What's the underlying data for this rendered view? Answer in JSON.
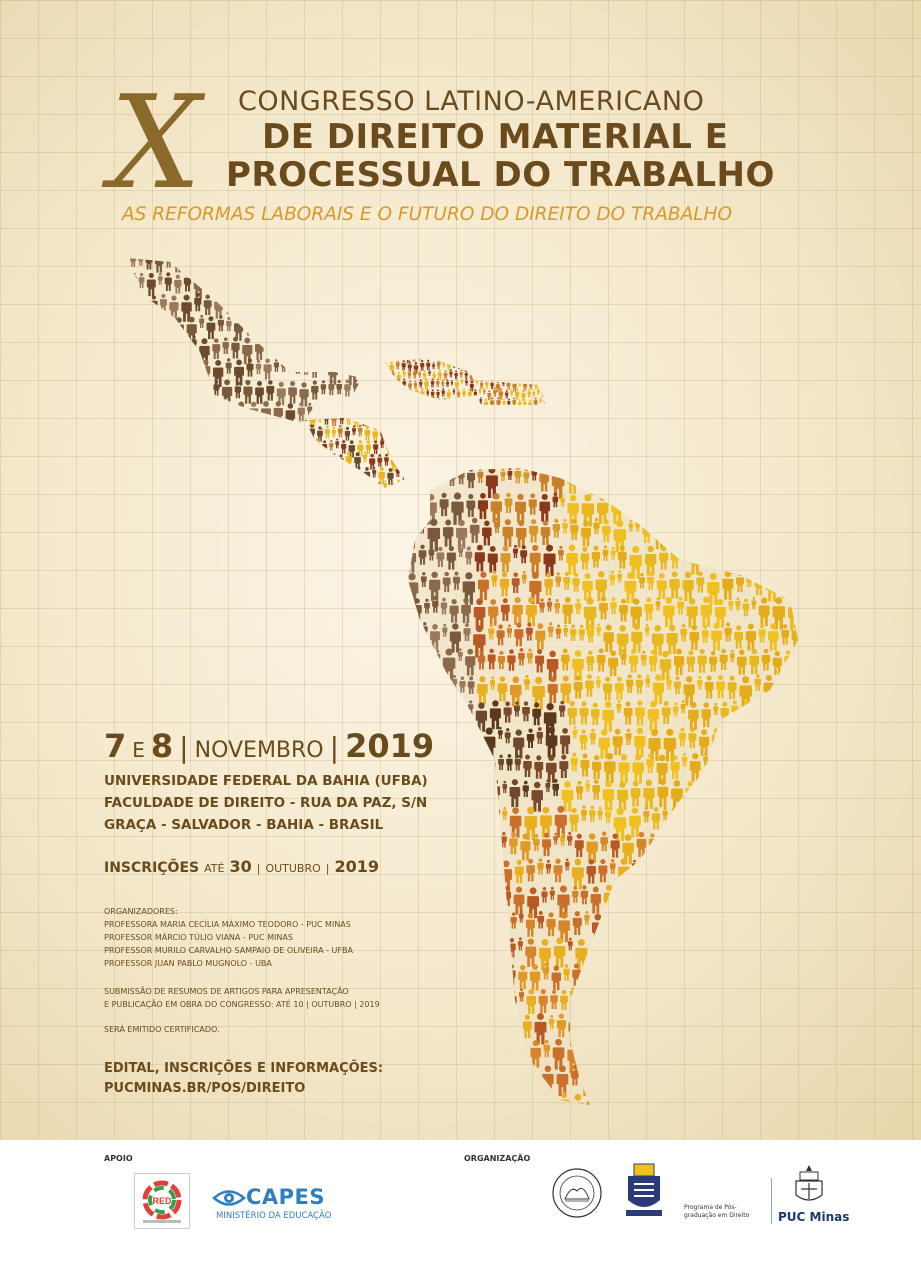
{
  "header": {
    "roman": "X",
    "line1": "CONGRESSO LATINO-AMERICANO",
    "line2": "DE DIREITO MATERIAL E",
    "line3": "PROCESSUAL DO TRABALHO",
    "subtitle": "AS REFORMAS LABORAIS E O FUTURO DO DIREITO DO TRABALHO"
  },
  "event": {
    "day1": "7",
    "and": "E",
    "day2": "8",
    "sep1": "|",
    "month": "NOVEMBRO",
    "sep2": "|",
    "year": "2019",
    "address": [
      "UNIVERSIDADE FEDERAL DA BAHIA (UFBA)",
      "FACULDADE DE DIREITO - RUA DA PAZ, S/N",
      "GRAÇA - SALVADOR - BAHIA - BRASIL"
    ]
  },
  "inscricoes": {
    "label": "INSCRIÇÕES",
    "ate": "ATÉ",
    "day": "30",
    "sep1": "|",
    "month": "OUTUBRO",
    "sep2": "|",
    "year": "2019"
  },
  "organizers": {
    "heading": "ORGANIZADORES:",
    "list": [
      "PROFESSORA MARIA CECÍLIA MÁXIMO TEODORO - PUC MINAS",
      "PROFESSOR MÁRCIO TÚLIO VIANA - PUC MINAS",
      "PROFESSOR MURILO CARVALHO SAMPAIO DE OLIVEIRA - UFBA",
      "PROFESSOR JUAN PABLO MUGNOLO - UBA"
    ]
  },
  "submission": {
    "line1": "SUBMISSÃO DE RESUMOS DE ARTIGOS PARA APRESENTAÇÃO",
    "line2": "E PUBLICAÇÃO EM OBRA DO CONGRESSO: ATÉ 10 | OUTUBRO | 2019"
  },
  "certificate": "SERÁ EMITIDO CERTIFICADO.",
  "edital": {
    "label": "EDITAL, INSCRIÇÕES E INFORMAÇÕES:",
    "url": "PUCMINAS.BR/POS/DIREITO"
  },
  "footer": {
    "apoio": "APOIO",
    "organizacao": "ORGANIZAÇÃO",
    "red_logo": "RED",
    "capes_name": "CAPES",
    "capes_sub": "MINISTÉRIO DA EDUCAÇÃO",
    "puc_program": "Programa de Pós-graduação em Direito",
    "puc_name": "PUC Minas"
  },
  "colors": {
    "brown": "#6b4b1b",
    "gold": "#d69a2a",
    "yellow": "#e8b820",
    "capes_blue": "#2e7fc0",
    "puc_blue": "#1a3a6a"
  }
}
